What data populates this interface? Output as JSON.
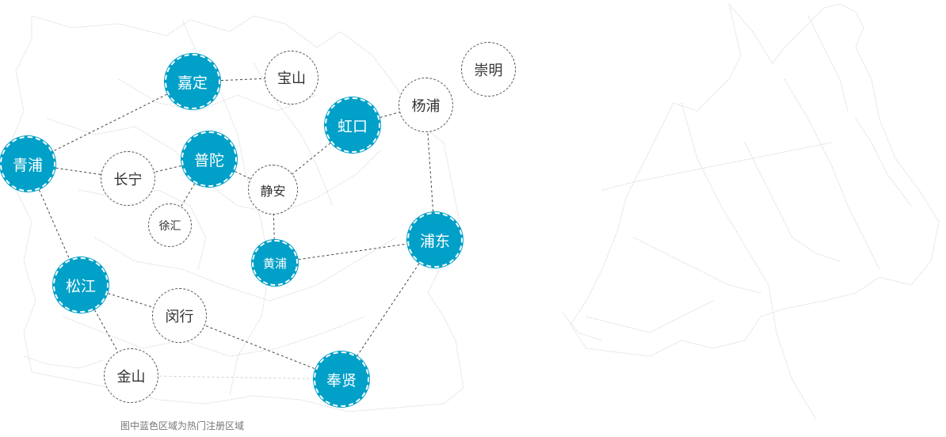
{
  "colors": {
    "hot": "#00a0c8",
    "normal_border": "#555555",
    "link": "#444444",
    "map_line": "#cfcfcf"
  },
  "caption": "图中蓝色区域为热门注册区域",
  "districts": [
    {
      "id": "jiading",
      "name": "嘉定",
      "hot": true
    },
    {
      "id": "baoshan",
      "name": "宝山",
      "hot": false
    },
    {
      "id": "chongming",
      "name": "崇明",
      "hot": false
    },
    {
      "id": "yangpu",
      "name": "杨浦",
      "hot": false
    },
    {
      "id": "hongkou",
      "name": "虹口",
      "hot": true
    },
    {
      "id": "qingpu",
      "name": "青浦",
      "hot": true
    },
    {
      "id": "putuo",
      "name": "普陀",
      "hot": true
    },
    {
      "id": "changning",
      "name": "长宁",
      "hot": false
    },
    {
      "id": "jingan",
      "name": "静安",
      "hot": false
    },
    {
      "id": "xuhui",
      "name": "徐汇",
      "hot": false
    },
    {
      "id": "pudong",
      "name": "浦东",
      "hot": true
    },
    {
      "id": "huangpu",
      "name": "黄浦",
      "hot": true
    },
    {
      "id": "songjiang",
      "name": "松江",
      "hot": true
    },
    {
      "id": "minhang",
      "name": "闵行",
      "hot": false
    },
    {
      "id": "jinshan",
      "name": "金山",
      "hot": false
    },
    {
      "id": "fengxian",
      "name": "奉贤",
      "hot": true
    }
  ]
}
